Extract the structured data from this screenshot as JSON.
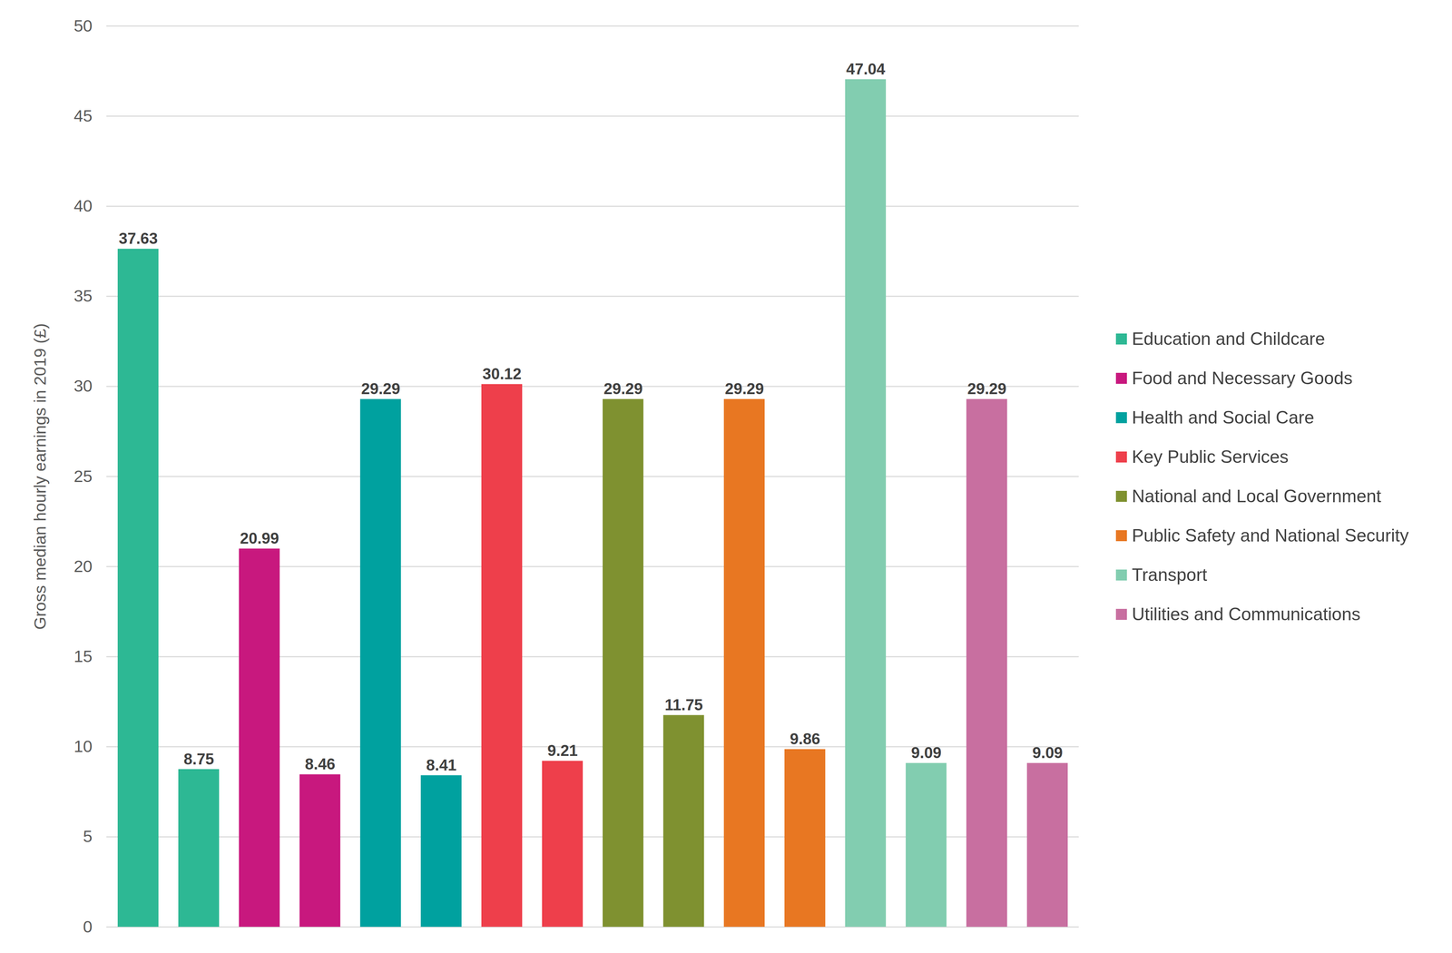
{
  "chart_data": {
    "type": "bar",
    "ylabel": "Gross median hourly earnings in 2019 (£)",
    "categories": [
      null,
      null,
      null,
      null,
      null,
      null,
      null,
      null,
      null,
      null,
      null,
      null,
      null,
      null,
      null,
      null
    ],
    "series": [
      {
        "name": "Education and Childcare",
        "color": "#2db894",
        "values": [
          37.63,
          8.75,
          null,
          null,
          null,
          null,
          null,
          null,
          null,
          null,
          null,
          null,
          null,
          null,
          null,
          null
        ]
      },
      {
        "name": "Food and Necessary Goods",
        "color": "#c8187e",
        "values": [
          null,
          null,
          20.99,
          8.46,
          null,
          null,
          null,
          null,
          null,
          null,
          null,
          null,
          null,
          null,
          null,
          null
        ]
      },
      {
        "name": "Health and Social Care",
        "color": "#00a19f",
        "values": [
          null,
          null,
          null,
          null,
          29.29,
          8.41,
          null,
          null,
          null,
          null,
          null,
          null,
          null,
          null,
          null,
          null
        ]
      },
      {
        "name": "Key Public Services",
        "color": "#ee3f4b",
        "values": [
          null,
          null,
          null,
          null,
          null,
          null,
          30.12,
          9.21,
          null,
          null,
          null,
          null,
          null,
          null,
          null,
          null
        ]
      },
      {
        "name": "National and Local Government",
        "color": "#7f9130",
        "values": [
          null,
          null,
          null,
          null,
          null,
          null,
          null,
          null,
          29.29,
          11.75,
          null,
          null,
          null,
          null,
          null,
          null
        ]
      },
      {
        "name": "Public Safety and National Security",
        "color": "#e87722",
        "values": [
          null,
          null,
          null,
          null,
          null,
          null,
          null,
          null,
          null,
          null,
          29.29,
          9.86,
          null,
          null,
          null,
          null
        ]
      },
      {
        "name": "Transport",
        "color": "#82cdb0",
        "values": [
          null,
          null,
          null,
          null,
          null,
          null,
          null,
          null,
          null,
          null,
          null,
          null,
          47.04,
          9.09,
          null,
          null
        ]
      },
      {
        "name": "Utilities and Communications",
        "color": "#c86fa0",
        "values": [
          null,
          null,
          null,
          null,
          null,
          null,
          null,
          null,
          null,
          null,
          null,
          null,
          null,
          null,
          29.29,
          9.09
        ]
      }
    ],
    "ylim": [
      0,
      50
    ],
    "yticks": [
      0,
      5,
      10,
      15,
      20,
      25,
      30,
      35,
      40,
      45,
      50
    ],
    "grid": true,
    "data_labels": true,
    "legend": "right",
    "tick_labels": "y"
  }
}
